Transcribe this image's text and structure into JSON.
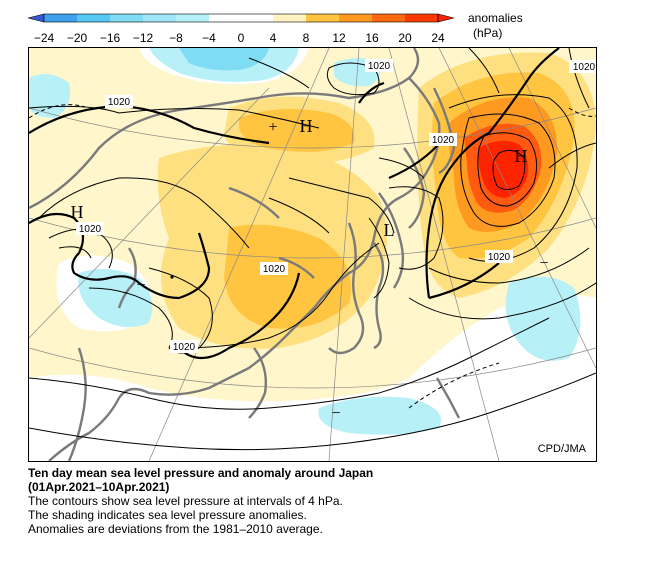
{
  "colorbar": {
    "ticks": [
      "−24",
      "−20",
      "−16",
      "−12",
      "−8",
      "−4",
      "0",
      "4",
      "8",
      "12",
      "16",
      "20",
      "24"
    ],
    "label_line1": "anomalies",
    "label_line2": "(hPa)",
    "colors": [
      "#3a56d8",
      "#3fa0ee",
      "#55c8f4",
      "#7fdcf5",
      "#b8f0f8",
      "#ffffff",
      "#fff3c2",
      "#ffe080",
      "#ffc440",
      "#ff9a20",
      "#ff5a10",
      "#ff2400"
    ]
  },
  "map": {
    "credit": "CPD/JMA",
    "contour_label": "1020",
    "systems": {
      "high": "H",
      "low": "L",
      "plus": "+",
      "minus": "−"
    }
  },
  "caption": {
    "title_line1": "Ten day mean sea level pressure and anomaly around Japan",
    "title_line2": "(01Apr.2021–10Apr.2021)",
    "line1": "The contours show sea level pressure at intervals of 4 hPa.",
    "line2": "The shading indicates sea level pressure anomalies.",
    "line3": "Anomalies are deviations from the 1981–2010 average."
  }
}
